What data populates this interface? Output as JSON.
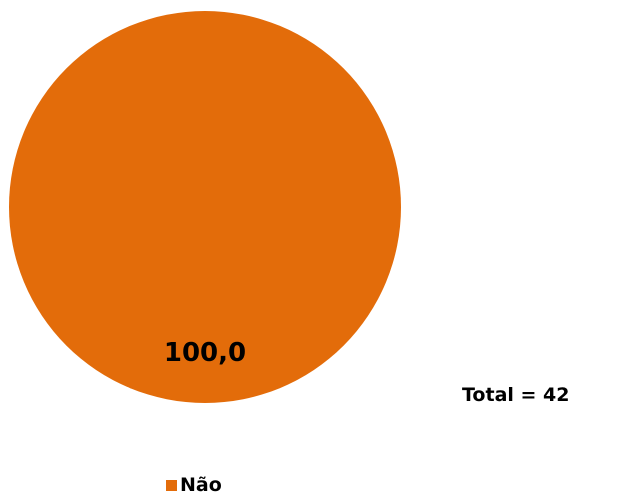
{
  "chart_data": {
    "type": "pie",
    "categories": [
      "Não"
    ],
    "values": [
      100.0
    ],
    "data_labels": [
      "100,0"
    ],
    "colors": [
      "#E36C0A"
    ],
    "legend": [
      "Não"
    ],
    "legend_position": "bottom",
    "annotation": "Total = 42"
  }
}
